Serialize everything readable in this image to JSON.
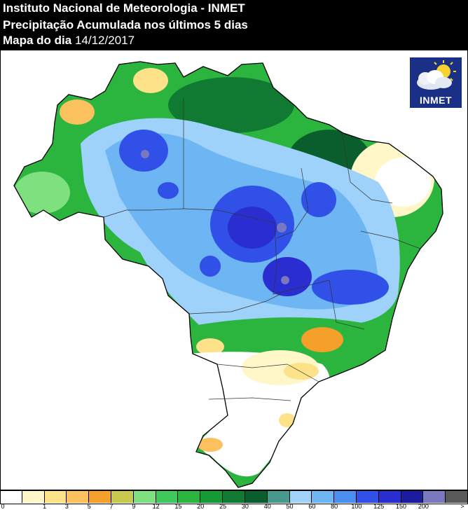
{
  "header": {
    "title": "Instituto Nacional de Meteorologia - INMET",
    "subtitle": "Precipitação Acumulada nos últimos 5 dias",
    "date_label": "Mapa do dia",
    "date_value": "14/12/2017"
  },
  "logo": {
    "text": "INMET",
    "icon": "sun-cloud-icon"
  },
  "legend": {
    "colors": [
      "#ffffff",
      "#fff7c8",
      "#fde28a",
      "#fbc15e",
      "#f5a02a",
      "#c9c94f",
      "#7fe07f",
      "#3ec95a",
      "#2bb53f",
      "#159a34",
      "#107a33",
      "#0a5d2c",
      "#47998e",
      "#9ed2fa",
      "#6eb5f4",
      "#4a8ff0",
      "#3150e8",
      "#2a2ed0",
      "#1c1ca0",
      "#7a78bf",
      "#595959"
    ],
    "ticks": [
      "0",
      "1",
      "3",
      "5",
      "7",
      "9",
      "12",
      "15",
      "20",
      "25",
      "30",
      "40",
      "50",
      "60",
      "80",
      "100",
      "125",
      "150",
      "200",
      ">"
    ]
  }
}
